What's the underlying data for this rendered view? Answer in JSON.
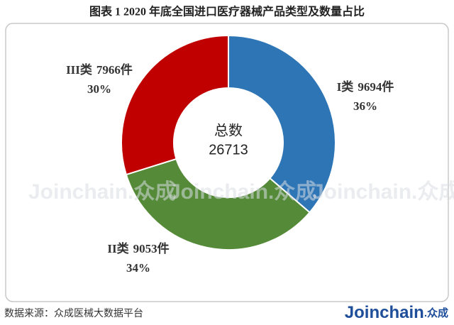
{
  "chart_data": {
    "type": "donut",
    "title": "图表 1    2020 年底全国进口医疗器械产品类型及数量占比",
    "categories": [
      "I类",
      "II类",
      "III类"
    ],
    "values": [
      9694,
      9053,
      7966
    ],
    "value_labels": [
      "9694件",
      "9053件",
      "7966件"
    ],
    "percents": [
      36,
      34,
      30
    ],
    "percent_labels": [
      "36%",
      "34%",
      "30%"
    ],
    "colors": [
      "#2e75b6",
      "#558b38",
      "#c00000"
    ],
    "center_label": "总数",
    "total": 26713,
    "source": "数据来源：众成医械大数据平台",
    "logo": "Joinchain",
    "logo_suffix": ".众成"
  }
}
